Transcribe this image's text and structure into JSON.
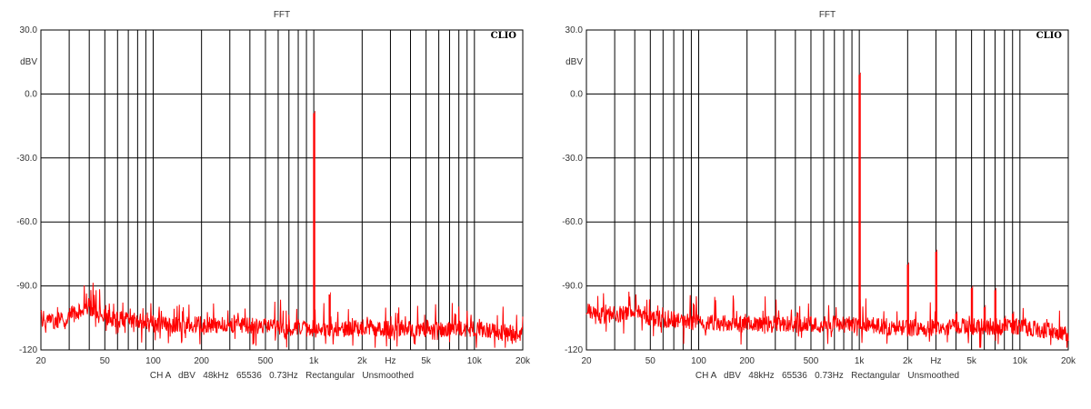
{
  "chart_data": [
    {
      "type": "line",
      "title": "FFT",
      "logo": "CLIO",
      "ylabel": "dBV",
      "xlabel": "Hz",
      "x_scale": "log",
      "xlim": [
        20,
        20000
      ],
      "ylim": [
        -120,
        30
      ],
      "grid": true,
      "y_ticks": [
        {
          "value": 30,
          "label": "30.0"
        },
        {
          "value": 0,
          "label": "0.0"
        },
        {
          "value": -30,
          "label": "-30.0"
        },
        {
          "value": -60,
          "label": "-60.0"
        },
        {
          "value": -90,
          "label": "-90.0"
        },
        {
          "value": -120,
          "label": "-120"
        }
      ],
      "x_ticks": [
        {
          "value": 20,
          "label": "20"
        },
        {
          "value": 50,
          "label": "50"
        },
        {
          "value": 100,
          "label": "100"
        },
        {
          "value": 200,
          "label": "200"
        },
        {
          "value": 500,
          "label": "500"
        },
        {
          "value": 1000,
          "label": "1k"
        },
        {
          "value": 2000,
          "label": "2k"
        },
        {
          "value": 5000,
          "label": "5k"
        },
        {
          "value": 10000,
          "label": "10k"
        },
        {
          "value": 20000,
          "label": "20k"
        }
      ],
      "footer": "CH A   dBV   48kHz   65536   0.73Hz   Rectangular   Unsmoothed",
      "series_color": "#ff0000",
      "noise_floor_dbv": -108,
      "peaks": [
        {
          "freq": 1000,
          "dbv": -9
        },
        {
          "freq": 1250,
          "dbv": -94
        }
      ],
      "points": [
        [
          20,
          -105
        ],
        [
          25,
          -107
        ],
        [
          30,
          -104
        ],
        [
          35,
          -102
        ],
        [
          40,
          -99
        ],
        [
          45,
          -103
        ],
        [
          50,
          -105
        ],
        [
          70,
          -106
        ],
        [
          100,
          -108
        ],
        [
          200,
          -108
        ],
        [
          500,
          -109
        ],
        [
          1000,
          -110
        ],
        [
          2000,
          -110
        ],
        [
          5000,
          -110
        ],
        [
          10000,
          -110
        ],
        [
          20000,
          -113
        ]
      ]
    },
    {
      "type": "line",
      "title": "FFT",
      "logo": "CLIO",
      "ylabel": "dBV",
      "xlabel": "Hz",
      "x_scale": "log",
      "xlim": [
        20,
        20000
      ],
      "ylim": [
        -120,
        30
      ],
      "grid": true,
      "y_ticks": [
        {
          "value": 30,
          "label": "30.0"
        },
        {
          "value": 0,
          "label": "0.0"
        },
        {
          "value": -30,
          "label": "-30.0"
        },
        {
          "value": -60,
          "label": "-60.0"
        },
        {
          "value": -90,
          "label": "-90.0"
        },
        {
          "value": -120,
          "label": "-120"
        }
      ],
      "x_ticks": [
        {
          "value": 20,
          "label": "20"
        },
        {
          "value": 50,
          "label": "50"
        },
        {
          "value": 100,
          "label": "100"
        },
        {
          "value": 200,
          "label": "200"
        },
        {
          "value": 500,
          "label": "500"
        },
        {
          "value": 1000,
          "label": "1k"
        },
        {
          "value": 2000,
          "label": "2k"
        },
        {
          "value": 5000,
          "label": "5k"
        },
        {
          "value": 10000,
          "label": "10k"
        },
        {
          "value": 20000,
          "label": "20k"
        }
      ],
      "footer": "CH A   dBV   48kHz   65536   0.73Hz   Rectangular   Unsmoothed",
      "series_color": "#ff0000",
      "noise_floor_dbv": -108,
      "peaks": [
        {
          "freq": 1000,
          "dbv": 9
        },
        {
          "freq": 2000,
          "dbv": -80
        },
        {
          "freq": 3000,
          "dbv": -74
        },
        {
          "freq": 4000,
          "dbv": -103
        },
        {
          "freq": 5000,
          "dbv": -91
        },
        {
          "freq": 6000,
          "dbv": -100
        },
        {
          "freq": 7000,
          "dbv": -92
        },
        {
          "freq": 8000,
          "dbv": -105
        },
        {
          "freq": 9000,
          "dbv": -103
        }
      ],
      "points": [
        [
          20,
          -102
        ],
        [
          25,
          -104
        ],
        [
          30,
          -103
        ],
        [
          35,
          -103
        ],
        [
          40,
          -100
        ],
        [
          45,
          -103
        ],
        [
          50,
          -105
        ],
        [
          70,
          -106
        ],
        [
          100,
          -107
        ],
        [
          200,
          -108
        ],
        [
          500,
          -108
        ],
        [
          1000,
          -108
        ],
        [
          2000,
          -110
        ],
        [
          5000,
          -109
        ],
        [
          10000,
          -109
        ],
        [
          20000,
          -112
        ]
      ]
    }
  ]
}
